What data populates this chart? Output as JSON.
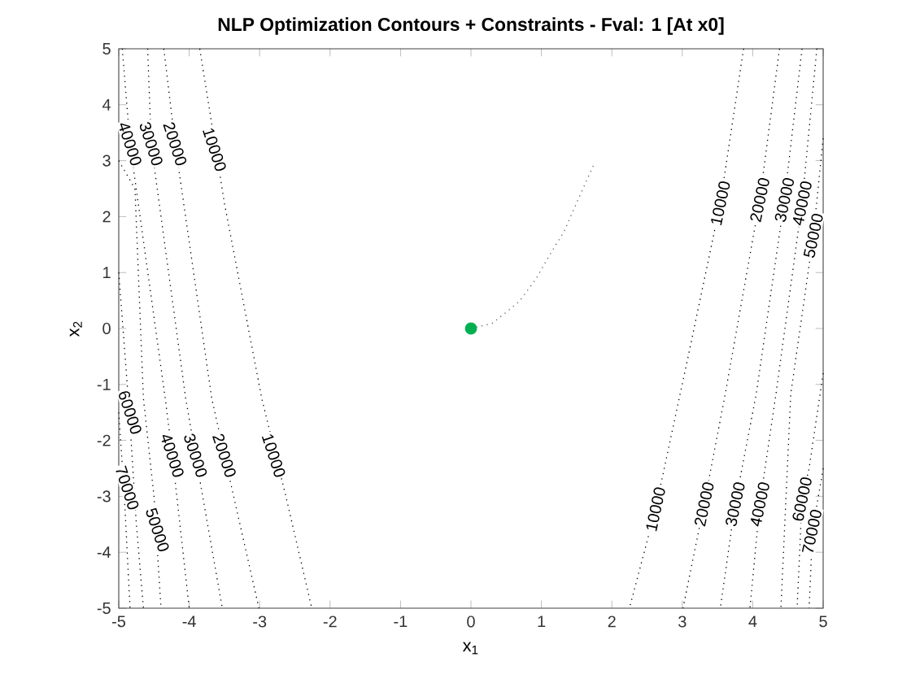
{
  "chart_data": {
    "type": "line",
    "title": "NLP Optimization Contours + Constraints - Fval: 1 [At x0]",
    "xlabel": "x$_{1}$",
    "ylabel": "x$_{2}$",
    "xlim": [
      -5,
      5
    ],
    "ylim": [
      -5,
      5
    ],
    "xticks": [
      -5,
      -4,
      -3,
      -2,
      -1,
      0,
      1,
      2,
      3,
      4,
      5
    ],
    "yticks": [
      -5,
      -4,
      -3,
      -2,
      -1,
      0,
      1,
      2,
      3,
      4,
      5
    ],
    "grid": false,
    "line_style": "dotted",
    "series": [
      {
        "color": "#000000",
        "x": [
          -3.85,
          -3.5,
          -2.97,
          -2.62,
          -2.26
        ],
        "values": [
          5,
          2.24,
          -1.25,
          -3.04,
          -5
        ]
      },
      {
        "color": "#000000",
        "x": [
          -4.36,
          -4.2,
          -3.68,
          -3.5,
          -3.01
        ],
        "values": [
          5,
          3.3,
          -1.25,
          -2.27,
          -5
        ]
      },
      {
        "color": "#000000",
        "x": [
          -4.59,
          -4.54,
          -4.05,
          -3.91,
          -3.53
        ],
        "values": [
          5,
          3.3,
          -1.25,
          -2.27,
          -5
        ]
      },
      {
        "color": "#000000",
        "x": [
          -4.95,
          -4.84,
          -4.34,
          -4.24,
          -4.0
        ],
        "values": [
          5,
          3.3,
          -1.25,
          -2.27,
          -5
        ]
      },
      {
        "color": "#000000",
        "x": [
          -5,
          -4.77,
          -4.65,
          -4.5,
          -4.4
        ],
        "values": [
          3.0,
          2.5,
          -1.25,
          -3.0,
          -5
        ]
      },
      {
        "color": "#000000",
        "x": [
          -5,
          -4.85,
          -4.75,
          -4.65
        ],
        "values": [
          1.0,
          -1.5,
          -3.5,
          -5
        ]
      },
      {
        "color": "#000000",
        "x": [
          -5,
          -4.92,
          -4.84
        ],
        "values": [
          -1.5,
          -3.0,
          -5
        ]
      },
      {
        "color": "#000000",
        "x": [
          3.87,
          3.54,
          3.08,
          2.62,
          2.25
        ],
        "values": [
          5,
          2.24,
          -0.52,
          -3.23,
          -5
        ]
      },
      {
        "color": "#000000",
        "x": [
          4.38,
          4.1,
          3.61,
          3.31,
          3.01
        ],
        "values": [
          5,
          2.3,
          -1.17,
          -3.14,
          -5
        ]
      },
      {
        "color": "#000000",
        "x": [
          4.7,
          4.45,
          4.05,
          3.75,
          3.54
        ],
        "values": [
          5,
          2.3,
          -1.17,
          -3.14,
          -5
        ]
      },
      {
        "color": "#000000",
        "x": [
          4.91,
          4.7,
          4.33,
          4.1,
          3.96
        ],
        "values": [
          5,
          2.24,
          -1.17,
          -3.14,
          -5
        ]
      },
      {
        "color": "#000000",
        "x": [
          5,
          4.86,
          4.54,
          4.4
        ],
        "values": [
          3.4,
          1.66,
          -1.17,
          -5
        ]
      },
      {
        "color": "#000000",
        "x": [
          5,
          4.8,
          4.7,
          4.63
        ],
        "values": [
          -0.8,
          -2.5,
          -3.05,
          -5
        ]
      },
      {
        "color": "#000000",
        "x": [
          5,
          4.85,
          4.8
        ],
        "values": [
          -2.5,
          -3.6,
          -5
        ]
      },
      {
        "color": "#606060",
        "x": [
          0,
          0.3,
          0.51,
          0.69,
          0.92,
          1.11,
          1.32,
          1.53,
          1.74
        ],
        "values": [
          0,
          0.09,
          0.3,
          0.49,
          0.88,
          1.3,
          1.73,
          2.33,
          2.92
        ]
      },
      {
        "type": "scatter",
        "marker": "circle",
        "color": "#00b050",
        "x": [
          0
        ],
        "values": [
          0
        ]
      }
    ],
    "annotations": [
      {
        "text": "10000",
        "x": -3.64,
        "y": 3.2
      },
      {
        "text": "20000",
        "x": -4.2,
        "y": 3.3
      },
      {
        "text": "30000",
        "x": -4.54,
        "y": 3.3
      },
      {
        "text": "40000",
        "x": -4.84,
        "y": 3.3
      },
      {
        "text": "10000",
        "x": -2.8,
        "y": -2.27
      },
      {
        "text": "20000",
        "x": -3.5,
        "y": -2.27
      },
      {
        "text": "30000",
        "x": -3.91,
        "y": -2.27
      },
      {
        "text": "40000",
        "x": -4.24,
        "y": -2.27
      },
      {
        "text": "50000",
        "x": -4.45,
        "y": -3.6
      },
      {
        "text": "60000",
        "x": -4.84,
        "y": -1.5
      },
      {
        "text": "70000",
        "x": -4.88,
        "y": -2.85
      },
      {
        "text": "10000",
        "x": 3.54,
        "y": 2.24
      },
      {
        "text": "20000",
        "x": 4.1,
        "y": 2.3
      },
      {
        "text": "30000",
        "x": 4.45,
        "y": 2.3
      },
      {
        "text": "40000",
        "x": 4.7,
        "y": 2.24
      },
      {
        "text": "50000",
        "x": 4.86,
        "y": 1.66
      },
      {
        "text": "10000",
        "x": 2.62,
        "y": -3.23
      },
      {
        "text": "20000",
        "x": 3.31,
        "y": -3.14
      },
      {
        "text": "30000",
        "x": 3.75,
        "y": -3.14
      },
      {
        "text": "40000",
        "x": 4.1,
        "y": -3.14
      },
      {
        "text": "60000",
        "x": 4.7,
        "y": -3.05
      },
      {
        "text": "70000",
        "x": 4.84,
        "y": -3.63
      }
    ]
  }
}
